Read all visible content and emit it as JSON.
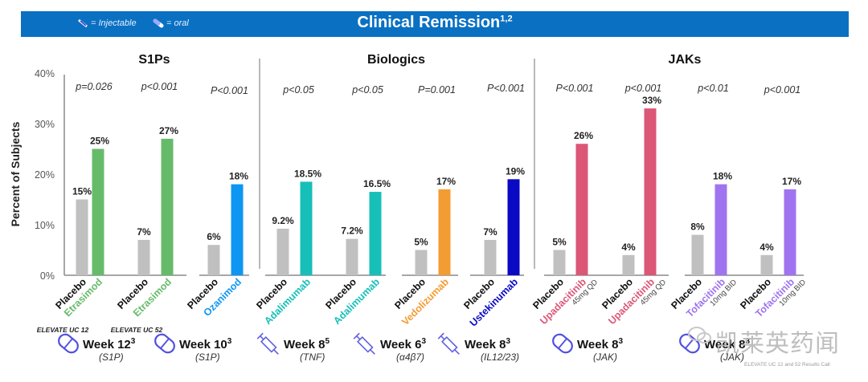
{
  "banner": {
    "title": "Clinical Remission",
    "title_sup": "1,2",
    "legend": [
      {
        "icon": "syringe-icon",
        "label": "= Injectable"
      },
      {
        "icon": "pill-icon",
        "label": "= oral"
      }
    ]
  },
  "chart_data": {
    "type": "bar",
    "title": "Clinical Remission",
    "ylabel": "Percent of Subjects",
    "ylim": [
      0,
      40
    ],
    "yticks": [
      "0%",
      "10%",
      "20%",
      "30%",
      "40%"
    ],
    "grid": false,
    "groups": [
      {
        "name": "S1Ps",
        "comparisons": [
          {
            "p": "p=0.026",
            "trial": "ELEVATE UC 12",
            "placebo": 15,
            "placebo_label": "15%",
            "drug": "Etrasimod",
            "drug_value": 25,
            "drug_label": "25%",
            "dose": "",
            "color": "#66bb6a"
          },
          {
            "p": "p<0.001",
            "trial": "ELEVATE UC 52",
            "placebo": 7,
            "placebo_label": "7%",
            "drug": "Etrasimod",
            "drug_value": 27,
            "drug_label": "27%",
            "dose": "",
            "color": "#66bb6a"
          },
          {
            "p": "P<0.001",
            "trial": "",
            "placebo": 6,
            "placebo_label": "6%",
            "drug": "Ozanimod",
            "drug_value": 18,
            "drug_label": "18%",
            "dose": "",
            "color": "#0d96f2"
          }
        ]
      },
      {
        "name": "Biologics",
        "comparisons": [
          {
            "p": "p<0.05",
            "trial": "",
            "placebo": 9.2,
            "placebo_label": "9.2%",
            "drug": "Adalimumab",
            "drug_value": 18.5,
            "drug_label": "18.5%",
            "dose": "",
            "color": "#17bfb9"
          },
          {
            "p": "p<0.05",
            "trial": "",
            "placebo": 7.2,
            "placebo_label": "7.2%",
            "drug": "Adalimumab",
            "drug_value": 16.5,
            "drug_label": "16.5%",
            "dose": "",
            "color": "#17bfb9"
          },
          {
            "p": "P=0.001",
            "trial": "",
            "placebo": 5,
            "placebo_label": "5%",
            "drug": "Vedolizumab",
            "drug_value": 17,
            "drug_label": "17%",
            "dose": "",
            "color": "#f39c33"
          },
          {
            "p": "P<0.001",
            "trial": "",
            "placebo": 7,
            "placebo_label": "7%",
            "drug": "Ustekinumab",
            "drug_value": 19,
            "drug_label": "19%",
            "dose": "",
            "color": "#0a0ac4"
          }
        ]
      },
      {
        "name": "JAKs",
        "comparisons": [
          {
            "p": "P<0.001",
            "trial": "",
            "placebo": 5,
            "placebo_label": "5%",
            "drug": "Upadacitinib",
            "drug_value": 26,
            "drug_label": "26%",
            "dose": "45mg QD",
            "color": "#dc5676"
          },
          {
            "p": "p<0.001",
            "trial": "",
            "placebo": 4,
            "placebo_label": "4%",
            "drug": "Upadacitinib",
            "drug_value": 33,
            "drug_label": "33%",
            "dose": "45mg QD",
            "color": "#dc5676"
          },
          {
            "p": "p<0.01",
            "trial": "",
            "placebo": 8,
            "placebo_label": "8%",
            "drug": "Tofacitinib",
            "drug_value": 18,
            "drug_label": "18%",
            "dose": "10mg BID",
            "color": "#a074f0"
          },
          {
            "p": "p<0.001",
            "trial": "",
            "placebo": 4,
            "placebo_label": "4%",
            "drug": "Tofacitinib",
            "drug_value": 17,
            "drug_label": "17%",
            "dose": "10mg BID",
            "color": "#a074f0"
          }
        ]
      }
    ],
    "placebo_label": "Placebo",
    "placebo_color": "#c0c0c0",
    "timepoints": [
      {
        "icon": "pill-icon",
        "week": "Week 12",
        "sup": "3",
        "mechanism": "(S1P)"
      },
      {
        "icon": "pill-icon",
        "week": "Week 10",
        "sup": "3",
        "mechanism": "(S1P)"
      },
      {
        "icon": "syringe-icon",
        "week": "Week 8",
        "sup": "5",
        "mechanism": "(TNF)"
      },
      {
        "icon": "syringe-icon",
        "week": "Week 6",
        "sup": "3",
        "mechanism": "(α4β7)"
      },
      {
        "icon": "syringe-icon",
        "week": "Week 8",
        "sup": "3",
        "mechanism": "(IL12/23)"
      },
      {
        "icon": "pill-icon",
        "week": "Week 8",
        "sup": "3",
        "mechanism": "(JAK)"
      },
      {
        "icon": "pill-icon",
        "week": "Week 8",
        "sup": "3",
        "mechanism": "(JAK)"
      }
    ]
  },
  "footnote": "ELEVATE UC 12 and 52 Results Call",
  "watermark": "凯莱英药闻"
}
